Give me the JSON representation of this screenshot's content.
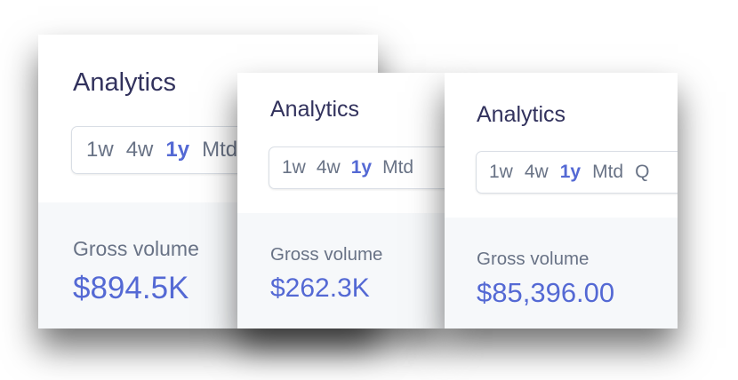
{
  "cards": [
    {
      "title": "Analytics",
      "tabs": [
        "1w",
        "4w",
        "1y",
        "Mtd"
      ],
      "active_tab": "1y",
      "metric_label": "Gross volume",
      "metric_value": "$894.5K"
    },
    {
      "title": "Analytics",
      "tabs": [
        "1w",
        "4w",
        "1y",
        "Mtd"
      ],
      "active_tab": "1y",
      "metric_label": "Gross volume",
      "metric_value": "$262.3K"
    },
    {
      "title": "Analytics",
      "tabs": [
        "1w",
        "4w",
        "1y",
        "Mtd",
        "Q"
      ],
      "active_tab": "1y",
      "metric_label": "Gross volume",
      "metric_value": "$85,396.00"
    }
  ]
}
